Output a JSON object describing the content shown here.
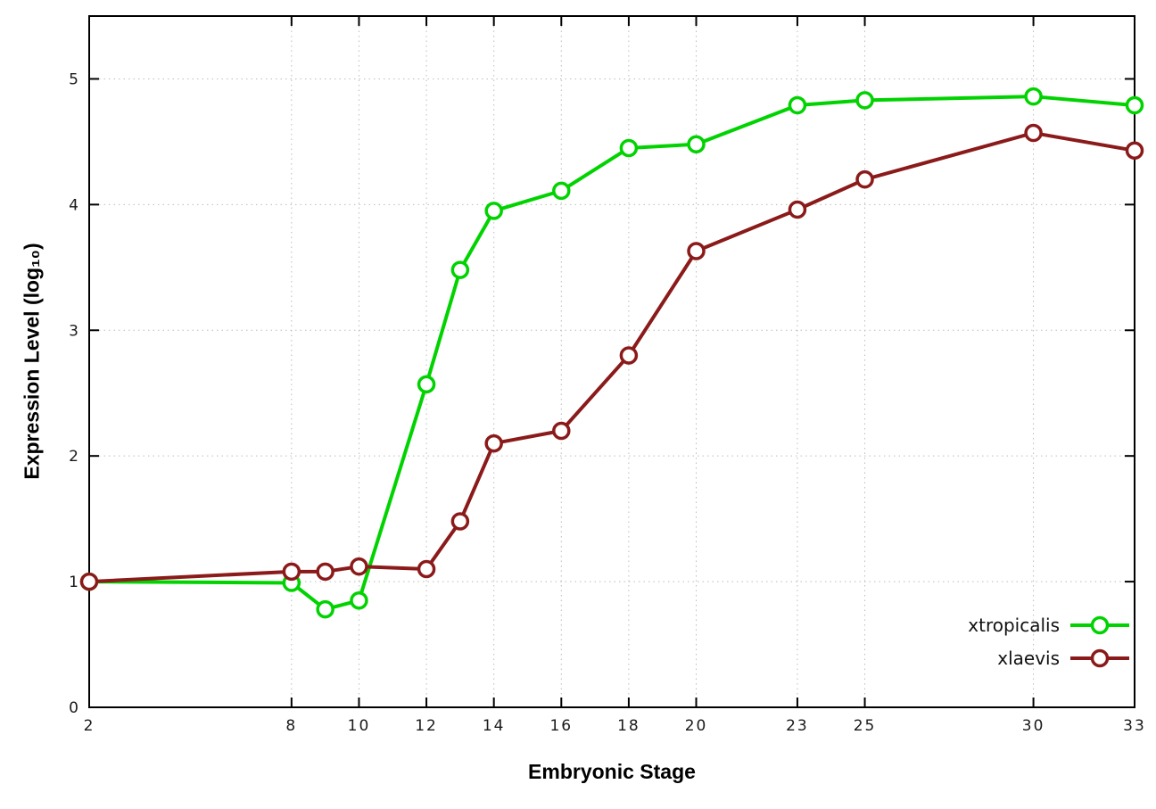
{
  "chart_data": {
    "type": "line",
    "title": "",
    "xlabel": "Embryonic Stage",
    "ylabel": "Expression Level (log₁₀)",
    "xlim": [
      2,
      33
    ],
    "ylim": [
      0,
      5.5
    ],
    "xticks": [
      2,
      8,
      10,
      12,
      14,
      16,
      18,
      20,
      23,
      25,
      30,
      33
    ],
    "yticks": [
      0,
      1,
      2,
      3,
      4,
      5
    ],
    "grid": true,
    "legend_position": "bottom-right",
    "x": [
      2,
      8,
      9,
      10,
      12,
      13,
      14,
      16,
      18,
      20,
      23,
      25,
      30,
      33
    ],
    "series": [
      {
        "name": "xtropicalis",
        "color": "#00d300",
        "values": [
          1.0,
          0.99,
          0.78,
          0.85,
          2.57,
          3.48,
          3.95,
          4.11,
          4.45,
          4.48,
          4.79,
          4.83,
          4.86,
          4.79
        ]
      },
      {
        "name": "xlaevis",
        "color": "#8b1a1a",
        "values": [
          1.0,
          1.08,
          1.08,
          1.12,
          1.1,
          1.48,
          2.1,
          2.2,
          2.8,
          3.63,
          3.96,
          4.2,
          4.57,
          4.43
        ]
      }
    ],
    "colors": {
      "background": "#ffffff",
      "border": "#000000",
      "grid": "#bcbcbc",
      "tick_text": "#1a1a1a"
    }
  }
}
